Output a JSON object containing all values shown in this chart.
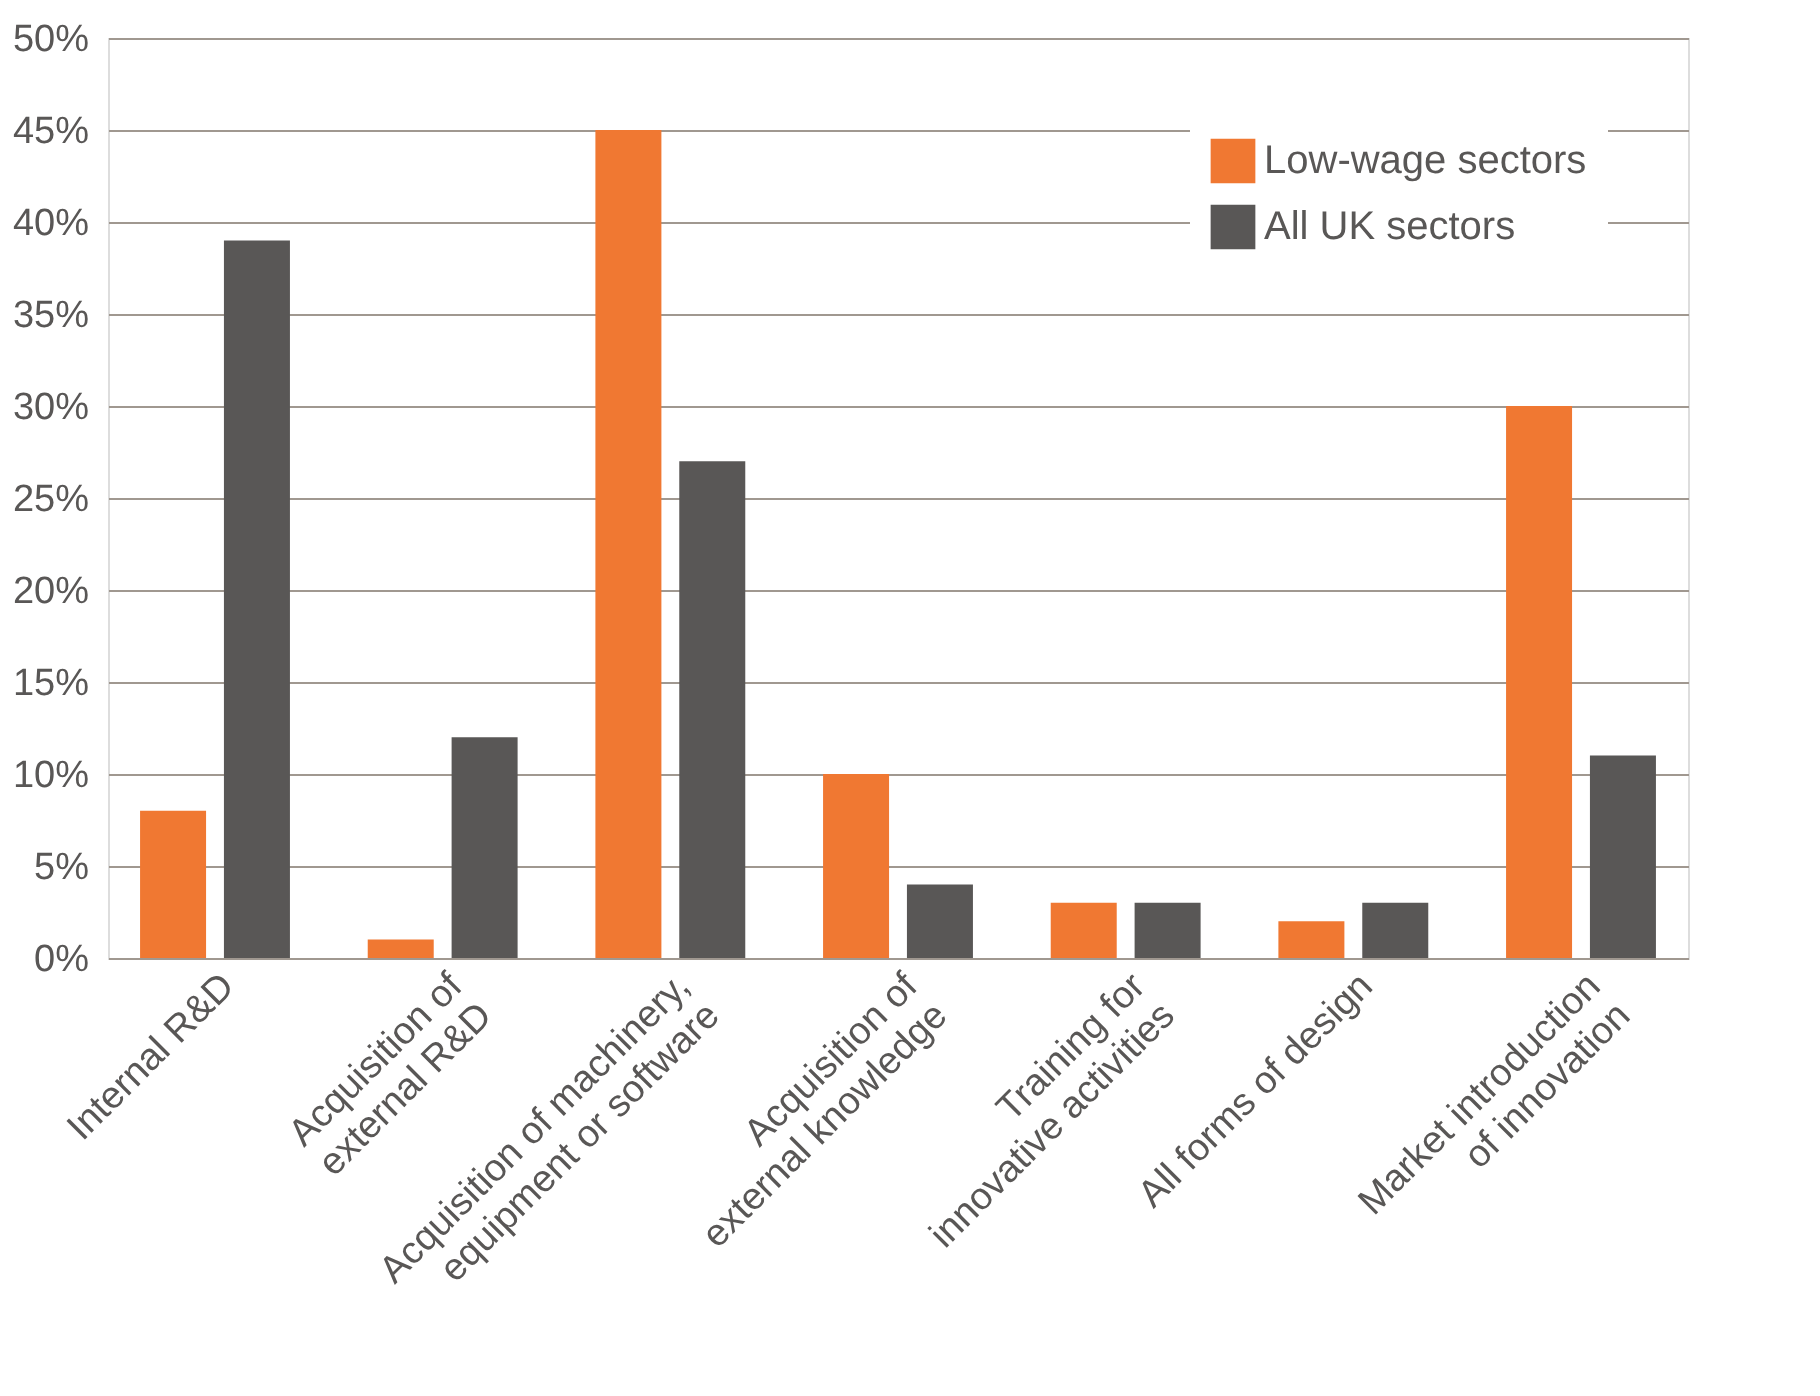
{
  "chart_data": {
    "type": "bar",
    "categories": [
      "Internal R&D",
      "Acquisition of\nexternal R&D",
      "Acquisition of machinery,\nequipment or software",
      "Acquisition of\nexternal knowledge",
      "Training for\ninnovative activities",
      "All forms of design",
      "Market introduction\nof innovation"
    ],
    "series": [
      {
        "name": "Low-wage sectors",
        "color": "#f07832",
        "values": [
          8,
          1,
          45,
          10,
          3,
          2,
          30
        ]
      },
      {
        "name": "All UK sectors",
        "color": "#595756",
        "values": [
          39,
          12,
          27,
          4,
          3,
          3,
          11
        ]
      }
    ],
    "ylim": [
      0,
      50
    ],
    "yticks": [
      {
        "value": 0,
        "label": "0%"
      },
      {
        "value": 5,
        "label": "5%"
      },
      {
        "value": 10,
        "label": "10%"
      },
      {
        "value": 15,
        "label": "15%"
      },
      {
        "value": 20,
        "label": "20%"
      },
      {
        "value": 25,
        "label": "25%"
      },
      {
        "value": 30,
        "label": "30%"
      },
      {
        "value": 35,
        "label": "35%"
      },
      {
        "value": 40,
        "label": "40%"
      },
      {
        "value": 45,
        "label": "45%"
      },
      {
        "value": 50,
        "label": "50%"
      }
    ],
    "grid": "y",
    "legend": "top right"
  }
}
